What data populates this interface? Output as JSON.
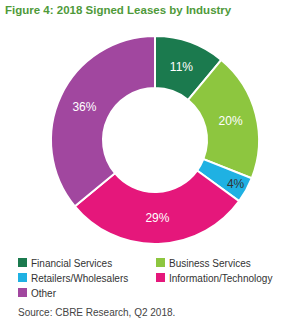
{
  "chart_data": {
    "type": "pie",
    "title": "Figure 4: 2018 Signed Leases by Industry",
    "categories": [
      "Financial Services",
      "Business Services",
      "Retailers/Wholesalers",
      "Information/Technology",
      "Other"
    ],
    "values": [
      11,
      20,
      4,
      29,
      36
    ],
    "value_labels": [
      "11%",
      "20%",
      "4%",
      "29%",
      "36%"
    ],
    "colors": [
      "#1b7a4e",
      "#8dc63f",
      "#1fb1e3",
      "#e5177b",
      "#a1479f"
    ],
    "data_labels": true,
    "legend": "bottom",
    "source": "Source: CBRE Research, Q2 2018."
  }
}
